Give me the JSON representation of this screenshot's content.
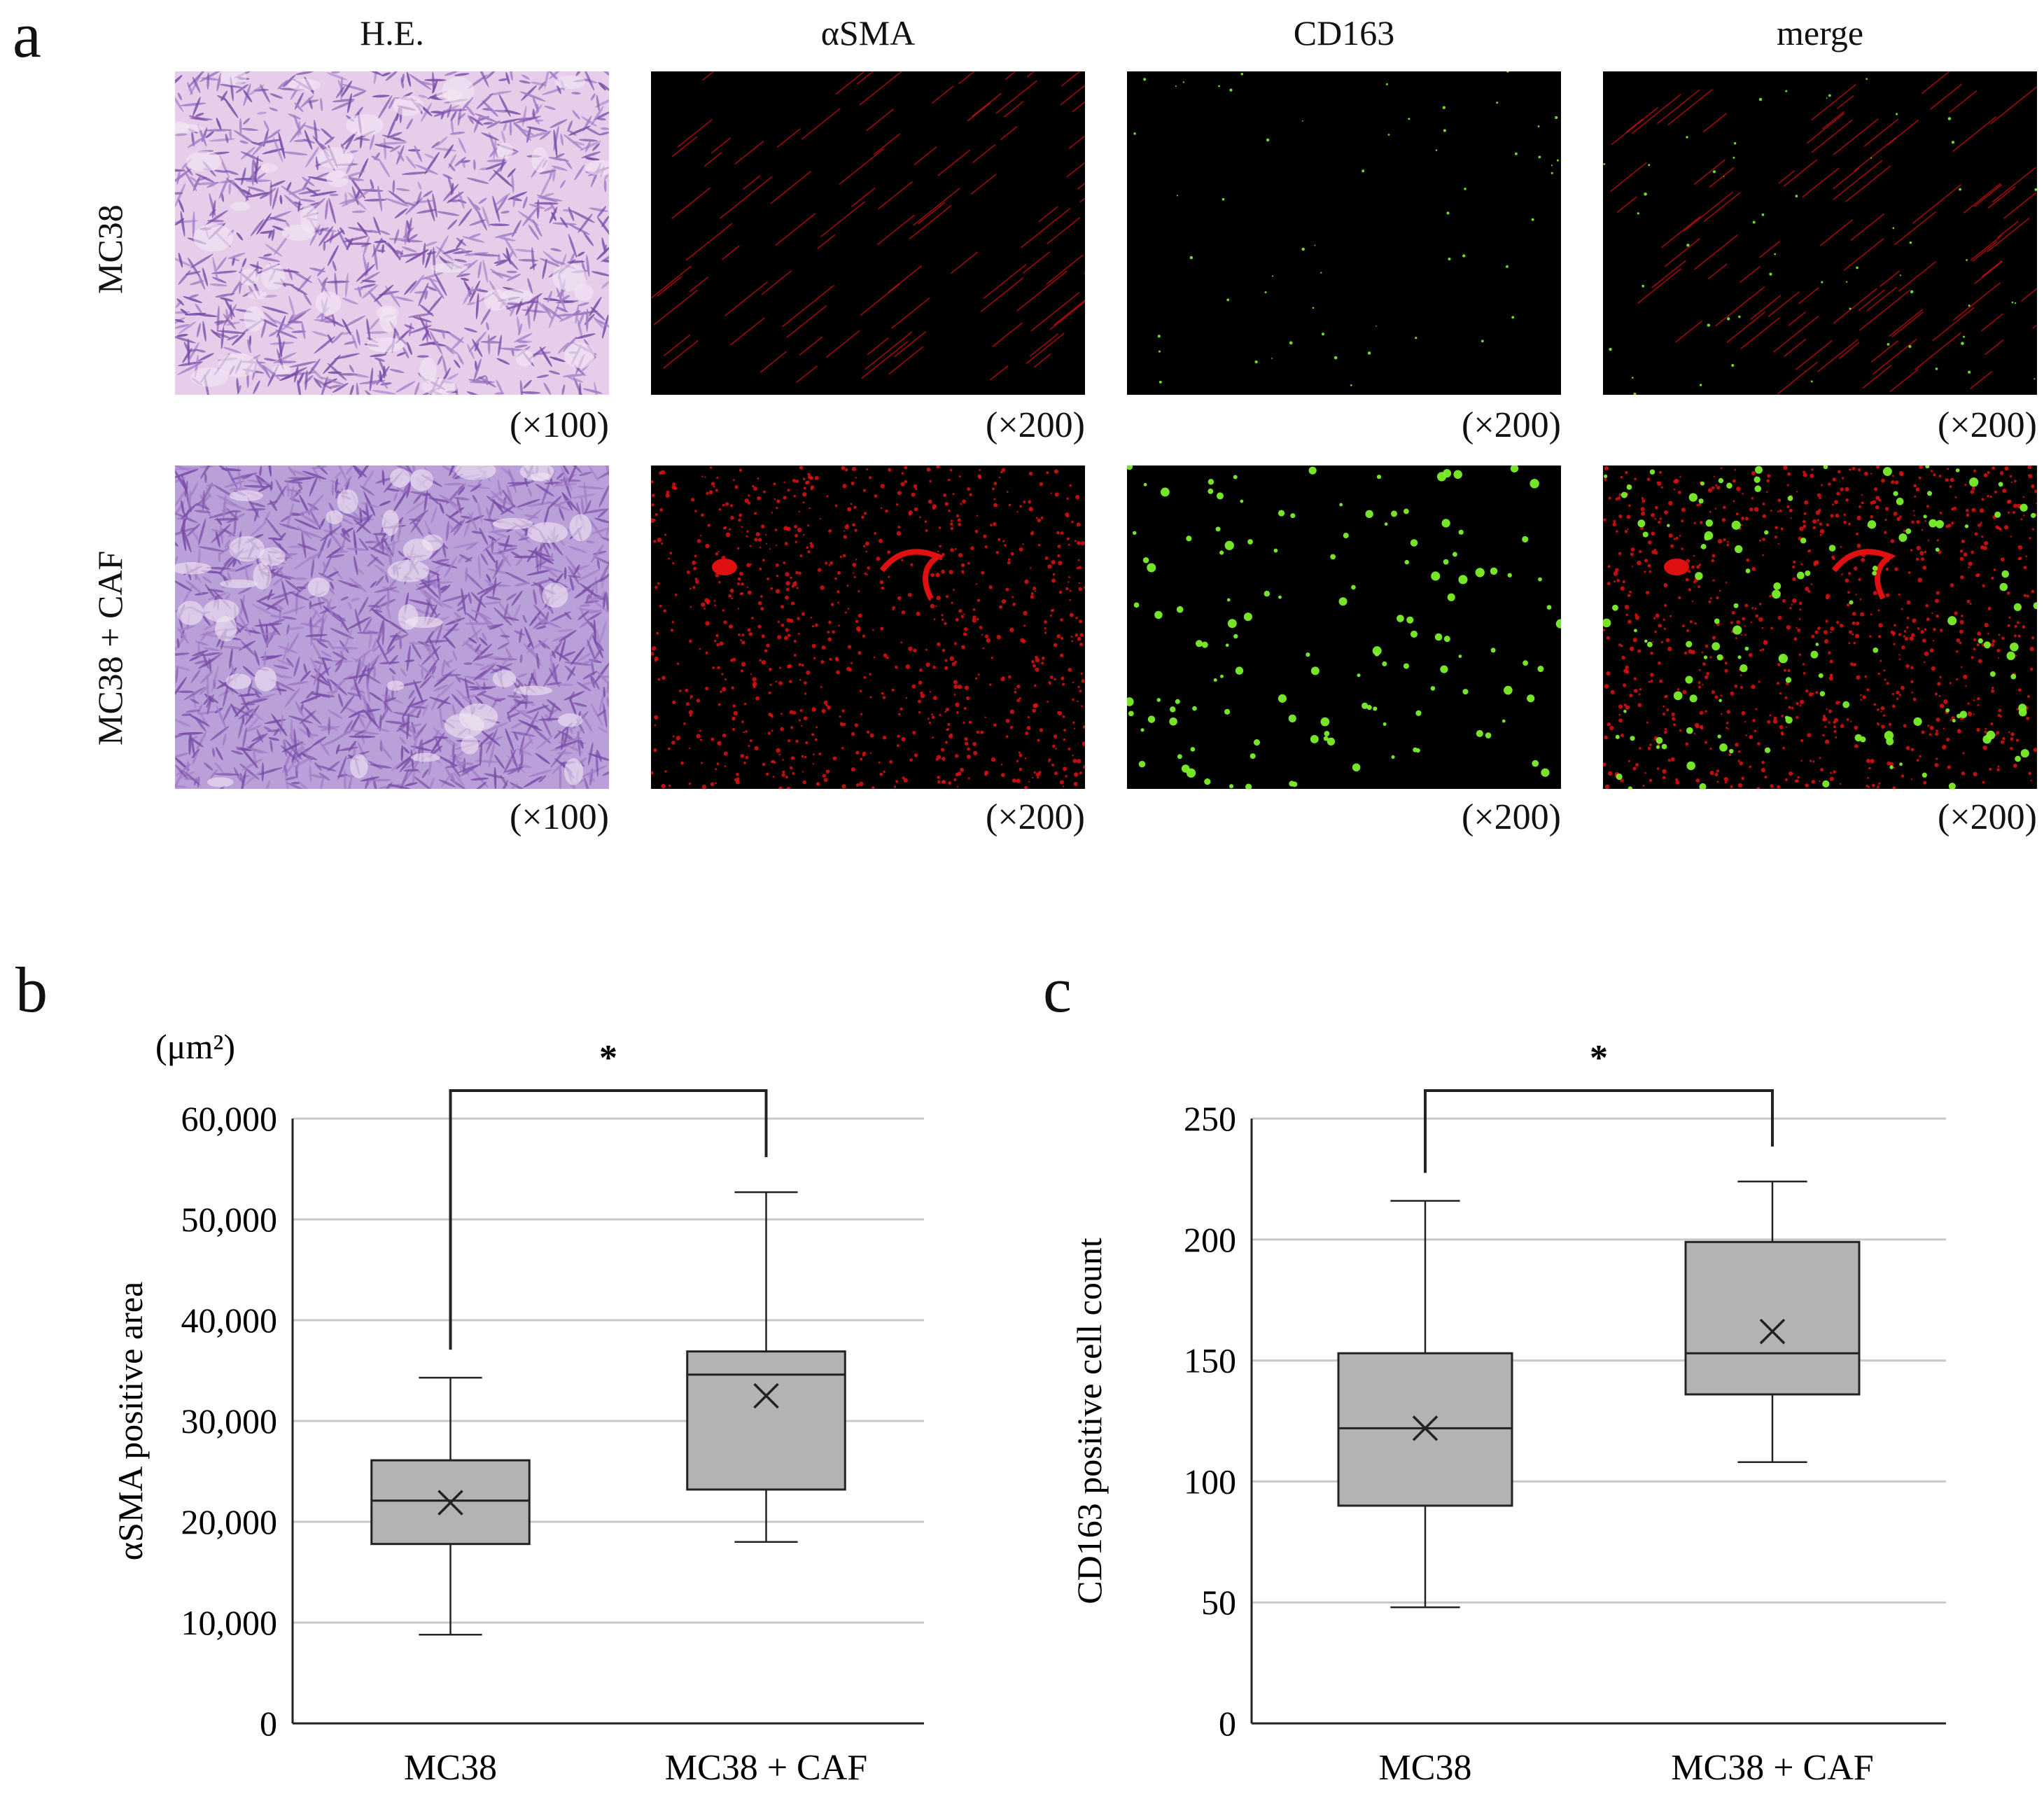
{
  "panel_a": {
    "letter": "a",
    "columns": [
      "H.E.",
      "αSMA",
      "CD163",
      "merge"
    ],
    "rows": [
      "MC38",
      "MC38 + CAF"
    ],
    "magnifications": [
      [
        "(×100)",
        "(×200)",
        "(×200)",
        "(×200)"
      ],
      [
        "(×100)",
        "(×200)",
        "(×200)",
        "(×200)"
      ]
    ],
    "colors": {
      "he_light": "#e6cdea",
      "he_dark": "#7a4ea8",
      "asma": "#e01010",
      "cd163": "#7cf02a"
    }
  },
  "panel_b": {
    "letter": "b",
    "unit_label": "(μm²)"
  },
  "panel_c": {
    "letter": "c"
  },
  "chart_data": [
    {
      "type": "box",
      "panel": "b",
      "categories": [
        "MC38",
        "MC38 + CAF"
      ],
      "ylabel": "αSMA positive area",
      "ylim": [
        0,
        60000
      ],
      "yticks": [
        0,
        10000,
        20000,
        30000,
        40000,
        50000,
        60000
      ],
      "ytick_labels": [
        "0",
        "10,000",
        "20,000",
        "30,000",
        "40,000",
        "50,000",
        "60,000"
      ],
      "boxes": [
        {
          "min": 8800,
          "q1": 17800,
          "median": 22100,
          "q3": 26100,
          "max": 34300,
          "mean": 21900
        },
        {
          "min": 18000,
          "q1": 23200,
          "median": 34600,
          "q3": 36900,
          "max": 52700,
          "mean": 32500
        }
      ],
      "significance": {
        "marker": "*",
        "pair": [
          0,
          1
        ]
      },
      "grid": true,
      "box_color": "#b3b3b3"
    },
    {
      "type": "box",
      "panel": "c",
      "categories": [
        "MC38",
        "MC38 + CAF"
      ],
      "ylabel": "CD163 positive cell count",
      "ylim": [
        0,
        250
      ],
      "yticks": [
        0,
        50,
        100,
        150,
        200,
        250
      ],
      "ytick_labels": [
        "0",
        "50",
        "100",
        "150",
        "200",
        "250"
      ],
      "boxes": [
        {
          "min": 48,
          "q1": 90,
          "median": 122,
          "q3": 153,
          "max": 216,
          "mean": 122
        },
        {
          "min": 108,
          "q1": 136,
          "median": 153,
          "q3": 199,
          "max": 224,
          "mean": 162
        }
      ],
      "significance": {
        "marker": "*",
        "pair": [
          0,
          1
        ]
      },
      "grid": true,
      "box_color": "#b3b3b3"
    }
  ]
}
